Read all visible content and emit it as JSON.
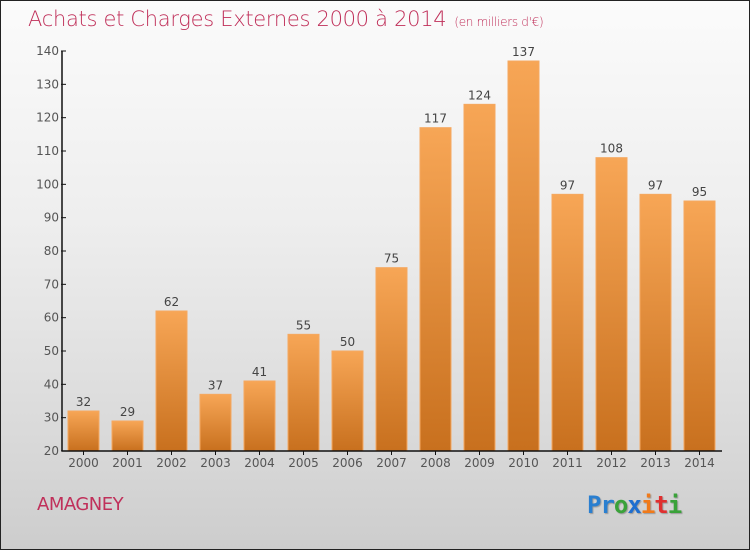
{
  "header": {
    "title": "Achats et Charges Externes 2000 à 2014",
    "subtitle": "(en milliers d'€)"
  },
  "footer": {
    "commune": "AMAGNEY",
    "logo_letters": [
      {
        "ch": "P",
        "color": "#2a7fd0"
      },
      {
        "ch": "r",
        "color": "#2a7fd0"
      },
      {
        "ch": "o",
        "color": "#3aa23a"
      },
      {
        "ch": "x",
        "color": "#1f6fd0"
      },
      {
        "ch": "i",
        "color": "#f07a1a"
      },
      {
        "ch": "t",
        "color": "#e03030"
      },
      {
        "ch": "i",
        "color": "#3aa23a"
      }
    ]
  },
  "colors": {
    "bar_top": "#f7a656",
    "bar_bottom": "#c8701e",
    "title": "#c0305a"
  },
  "chart_data": {
    "type": "bar",
    "title": "Achats et Charges Externes 2000 à 2014 (en milliers d'€)",
    "xlabel": "",
    "ylabel": "",
    "categories": [
      "2000",
      "2001",
      "2002",
      "2003",
      "2004",
      "2005",
      "2006",
      "2007",
      "2008",
      "2009",
      "2010",
      "2011",
      "2012",
      "2013",
      "2014"
    ],
    "values": [
      32,
      29,
      62,
      37,
      41,
      55,
      50,
      75,
      117,
      124,
      137,
      97,
      108,
      97,
      95
    ],
    "ylim": [
      20,
      140
    ],
    "yticks": [
      20,
      30,
      40,
      50,
      60,
      70,
      80,
      90,
      100,
      110,
      120,
      130,
      140
    ],
    "grid": false,
    "legend": "none"
  }
}
